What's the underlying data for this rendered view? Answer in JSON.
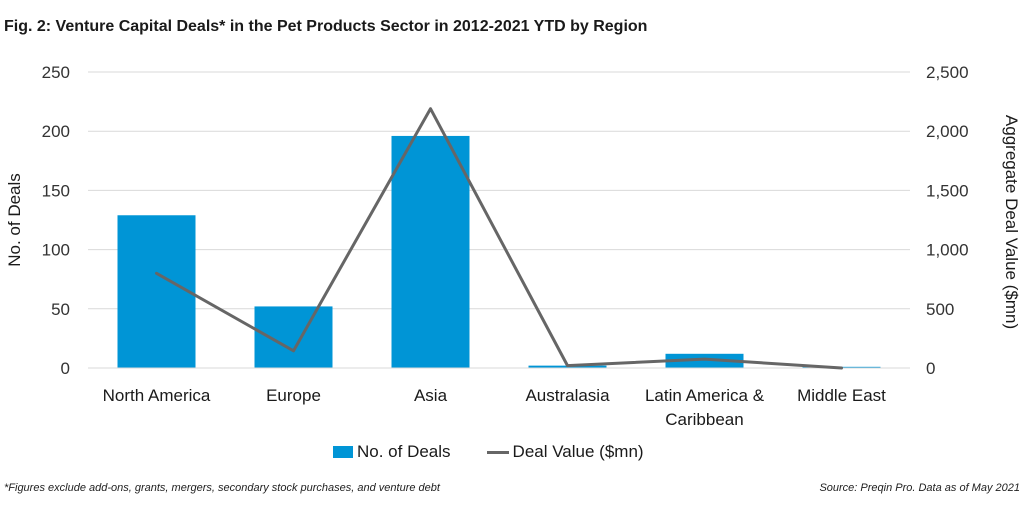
{
  "title": "Fig. 2: Venture Capital Deals* in the Pet Products Sector in 2012-2021 YTD by Region",
  "footnote": "*Figures exclude add-ons, grants, mergers, secondary stock purchases, and venture debt",
  "source": "Source: Preqin Pro. Data as of May 2021",
  "colors": {
    "bar": "#0095d6",
    "line": "#666666",
    "grid": "#d9d9d9"
  },
  "legend": {
    "bar_label": "No. of Deals",
    "line_label": "Deal Value ($mn)"
  },
  "chart_data": {
    "type": "bar",
    "title": "Fig. 2: Venture Capital Deals* in the Pet Products Sector in 2012-2021 YTD by Region",
    "categories": [
      [
        "North America"
      ],
      [
        "Europe"
      ],
      [
        "Asia"
      ],
      [
        "Australasia"
      ],
      [
        "Latin America &",
        "Caribbean"
      ],
      [
        "Middle East"
      ]
    ],
    "series": [
      {
        "name": "No. of Deals",
        "type": "bar",
        "axis": "left",
        "values": [
          129,
          52,
          196,
          2,
          12,
          1
        ]
      },
      {
        "name": "Deal Value ($mn)",
        "type": "line",
        "axis": "right",
        "values": [
          800,
          145,
          2190,
          20,
          75,
          0
        ]
      }
    ],
    "ylabel": "No. of Deals",
    "ylabel_right": "Aggregate Deal Value ($mn)",
    "ylim": [
      0,
      250
    ],
    "ylim_right": [
      0,
      2500
    ],
    "yticks": [
      "0",
      "50",
      "100",
      "150",
      "200",
      "250"
    ],
    "yticks_right": [
      "0",
      "500",
      "1,000",
      "1,500",
      "2,000",
      "2,500"
    ],
    "grid": true,
    "legend_position": "bottom"
  }
}
